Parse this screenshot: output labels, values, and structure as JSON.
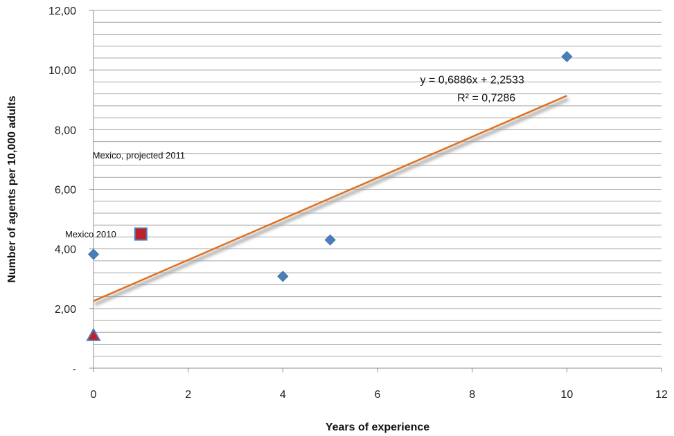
{
  "chart_data": {
    "type": "scatter",
    "title": "",
    "xlabel": "Years of experience",
    "ylabel": "Number of agents per 10,000 adults",
    "xlim": [
      0,
      12
    ],
    "ylim": [
      0,
      12
    ],
    "x_ticks": [
      0,
      2,
      4,
      6,
      8,
      10,
      12
    ],
    "x_tick_labels": [
      "0",
      "2",
      "4",
      "6",
      "8",
      "10",
      "12"
    ],
    "y_ticks": [
      0,
      2,
      4,
      6,
      8,
      10,
      12
    ],
    "y_tick_labels": [
      "-",
      "2,00",
      "4,00",
      "6,00",
      "8,00",
      "10,00",
      "12,00"
    ],
    "y_minor_step": 0.4,
    "grid": "horizontal",
    "series": [
      {
        "marker": "diamond",
        "color": "#4a7ebb",
        "points": [
          {
            "x": 0,
            "y": 3.82
          },
          {
            "x": 4,
            "y": 3.08
          },
          {
            "x": 5,
            "y": 4.3
          },
          {
            "x": 10,
            "y": 10.45
          }
        ]
      },
      {
        "marker": "square",
        "color": "#c0202a",
        "edge": "#4a7ebb",
        "points": [
          {
            "x": 1,
            "y": 4.5
          }
        ]
      },
      {
        "marker": "triangle",
        "color": "#c0202a",
        "edge": "#4a7ebb",
        "points": [
          {
            "x": 0,
            "y": 1.1
          }
        ]
      }
    ],
    "trendline": {
      "slope": 0.6886,
      "intercept": 2.2533,
      "x_range": [
        0,
        10
      ],
      "color": "#e07020",
      "equation": "y = 0,6886x + 2,2533",
      "r_squared": "R² = 0,7286"
    },
    "annotations": [
      {
        "text": "Mexico, projected 2011",
        "x": -0.02,
        "y": 7.15
      },
      {
        "text": "Mexico 2010",
        "x": -0.6,
        "y": 4.5
      }
    ]
  }
}
